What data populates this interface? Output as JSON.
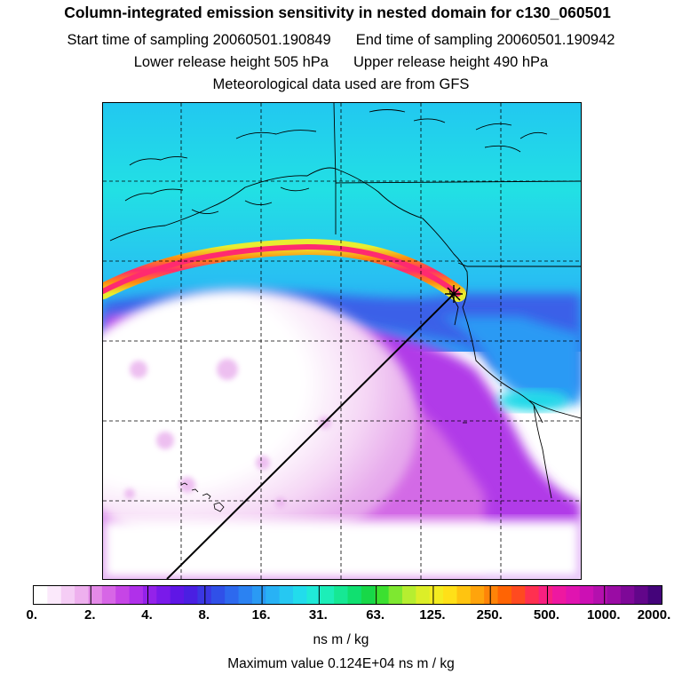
{
  "title": "Column-integrated emission sensitivity in nested domain for c130_060501",
  "sampling": {
    "start": "Start time of sampling 20060501.190849",
    "end": "End time of sampling 20060501.190942"
  },
  "release": {
    "lower": "Lower release height  505 hPa",
    "upper": "Upper release height  490 hPa"
  },
  "met_note": "Meteorological data used are from GFS",
  "colorbar": {
    "labels": [
      "0.",
      "2.",
      "4.",
      "8.",
      "16.",
      "31.",
      "63.",
      "125.",
      "250.",
      "500.",
      "1000.",
      "2000."
    ],
    "colors": [
      "#ffffff",
      "#fbe9fb",
      "#f5cdf5",
      "#eeb0ee",
      "#e48ae8",
      "#d766e6",
      "#c645e6",
      "#b030ea",
      "#9422ea",
      "#7a1aea",
      "#5f16e6",
      "#4a1fe2",
      "#3b37e3",
      "#3050e8",
      "#2d69ee",
      "#2b82f2",
      "#2a9af4",
      "#28b2f5",
      "#26c8f2",
      "#22dcec",
      "#20ead8",
      "#1ceeb8",
      "#16e894",
      "#10e070",
      "#18d848",
      "#3ce030",
      "#7ee830",
      "#b6ee30",
      "#dcee28",
      "#f4ec20",
      "#ffe018",
      "#ffc410",
      "#ffa40c",
      "#ff8408",
      "#ff6404",
      "#ff4a20",
      "#ff3050",
      "#f82080",
      "#ee18a0",
      "#e014b0",
      "#cc10b4",
      "#b410ae",
      "#9a0ca4",
      "#7e0898",
      "#62068a",
      "#44047a"
    ],
    "units": "ns m / kg"
  },
  "max_value": "Maximum value  0.124E+04 ns m / kg",
  "map_colors": {
    "background": "#ffffff",
    "coastline": "#000000",
    "grid": "#000000",
    "release_marker": "#000000"
  }
}
